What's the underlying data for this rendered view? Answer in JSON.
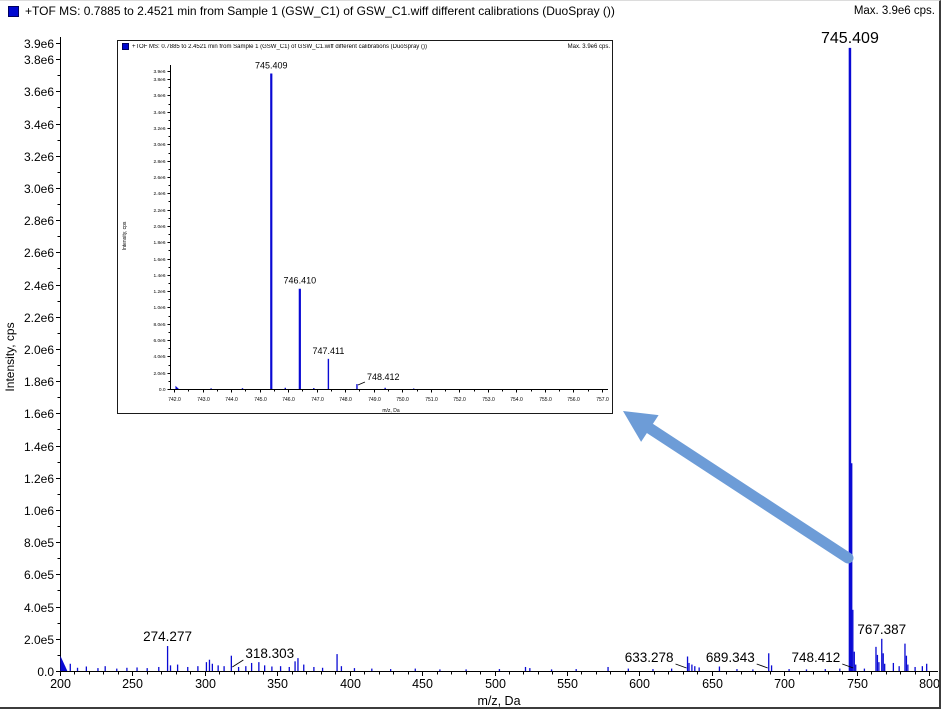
{
  "header": {
    "title": "+TOF MS: 0.7885 to 2.4521 min from Sample 1 (GSW_C1) of GSW_C1.wiff different calibrations (DuoSpray ())",
    "max_label": "Max. 3.9e6 cps."
  },
  "inset_header": {
    "title": "+TOF MS: 0.7885 to 2.4521 min from Sample 1 (GSW_C1) of GSW_C1.wiff different calibrations (DuoSpray ())",
    "max_label": "Max. 3.9e6 cps."
  },
  "colors": {
    "peak": "#0a0ad4",
    "axis": "#000000",
    "text": "#000000",
    "arrow": "#6d9cd7",
    "legend_icon": "#0008d0"
  },
  "chart_data": [
    {
      "id": "main",
      "type": "bar",
      "title": "+TOF MS: 0.7885 to 2.4521 min from Sample 1 (GSW_C1) of GSW_C1.wiff different calibrations (DuoSpray ())",
      "max_label": "Max. 3.9e6 cps.",
      "xlabel": "m/z, Da",
      "ylabel": "Intensity, cps",
      "xlim": [
        200,
        800
      ],
      "ylim": [
        0,
        3900000
      ],
      "x_minor_step": 10,
      "y_minor_step": 100000,
      "x_ticks": [
        {
          "v": 200,
          "t": "200"
        },
        {
          "v": 250,
          "t": "250"
        },
        {
          "v": 300,
          "t": "300"
        },
        {
          "v": 350,
          "t": "350"
        },
        {
          "v": 400,
          "t": "400"
        },
        {
          "v": 450,
          "t": "450"
        },
        {
          "v": 500,
          "t": "500"
        },
        {
          "v": 550,
          "t": "550"
        },
        {
          "v": 600,
          "t": "600"
        },
        {
          "v": 650,
          "t": "650"
        },
        {
          "v": 700,
          "t": "700"
        },
        {
          "v": 750,
          "t": "750"
        },
        {
          "v": 800,
          "t": "800"
        }
      ],
      "y_ticks": [
        {
          "v": 0,
          "t": "0.0"
        },
        {
          "v": 200000,
          "t": "2.0e5"
        },
        {
          "v": 400000,
          "t": "4.0e5"
        },
        {
          "v": 600000,
          "t": "6.0e5"
        },
        {
          "v": 800000,
          "t": "8.0e5"
        },
        {
          "v": 1000000,
          "t": "1.0e6"
        },
        {
          "v": 1200000,
          "t": "1.2e6"
        },
        {
          "v": 1400000,
          "t": "1.4e6"
        },
        {
          "v": 1600000,
          "t": "1.6e6"
        },
        {
          "v": 1800000,
          "t": "1.8e6"
        },
        {
          "v": 2000000,
          "t": "2.0e6"
        },
        {
          "v": 2200000,
          "t": "2.2e6"
        },
        {
          "v": 2400000,
          "t": "2.4e6"
        },
        {
          "v": 2600000,
          "t": "2.6e6"
        },
        {
          "v": 2800000,
          "t": "2.8e6"
        },
        {
          "v": 3000000,
          "t": "3.0e6"
        },
        {
          "v": 3200000,
          "t": "3.2e6"
        },
        {
          "v": 3400000,
          "t": "3.4e6"
        },
        {
          "v": 3600000,
          "t": "3.6e6"
        },
        {
          "v": 3800000,
          "t": "3.8e6"
        },
        {
          "v": 3900000,
          "t": "3.9e6"
        }
      ],
      "peaks": [
        {
          "mz": 200.25,
          "intensity": 95000,
          "edge": true
        },
        {
          "mz": 203.1,
          "intensity": 30000
        },
        {
          "mz": 207.1,
          "intensity": 45000
        },
        {
          "mz": 212.1,
          "intensity": 20000
        },
        {
          "mz": 218.2,
          "intensity": 28000
        },
        {
          "mz": 226.2,
          "intensity": 18000
        },
        {
          "mz": 231.2,
          "intensity": 30000
        },
        {
          "mz": 239.2,
          "intensity": 15000
        },
        {
          "mz": 246.2,
          "intensity": 20000
        },
        {
          "mz": 253.2,
          "intensity": 22000
        },
        {
          "mz": 260.2,
          "intensity": 18000
        },
        {
          "mz": 268.2,
          "intensity": 25000
        },
        {
          "mz": 274.277,
          "intensity": 155000,
          "label": "274.277",
          "label_side": "above"
        },
        {
          "mz": 276.3,
          "intensity": 35000
        },
        {
          "mz": 281.2,
          "intensity": 40000
        },
        {
          "mz": 288.2,
          "intensity": 25000
        },
        {
          "mz": 295.2,
          "intensity": 30000
        },
        {
          "mz": 301.1,
          "intensity": 55000
        },
        {
          "mz": 303.2,
          "intensity": 70000
        },
        {
          "mz": 305.2,
          "intensity": 45000
        },
        {
          "mz": 309.2,
          "intensity": 35000
        },
        {
          "mz": 313.3,
          "intensity": 30000
        },
        {
          "mz": 318.303,
          "intensity": 95000,
          "label": "318.303",
          "label_side": "right",
          "leader": true
        },
        {
          "mz": 323.3,
          "intensity": 25000
        },
        {
          "mz": 328.3,
          "intensity": 30000
        },
        {
          "mz": 332.3,
          "intensity": 50000
        },
        {
          "mz": 337.3,
          "intensity": 55000
        },
        {
          "mz": 341.3,
          "intensity": 35000
        },
        {
          "mz": 346.3,
          "intensity": 28000
        },
        {
          "mz": 352.3,
          "intensity": 30000
        },
        {
          "mz": 358.3,
          "intensity": 25000
        },
        {
          "mz": 362.3,
          "intensity": 60000
        },
        {
          "mz": 364.3,
          "intensity": 80000
        },
        {
          "mz": 368.3,
          "intensity": 40000
        },
        {
          "mz": 375.3,
          "intensity": 25000
        },
        {
          "mz": 381.3,
          "intensity": 20000
        },
        {
          "mz": 391.3,
          "intensity": 105000
        },
        {
          "mz": 394.3,
          "intensity": 30000
        },
        {
          "mz": 403.3,
          "intensity": 18000
        },
        {
          "mz": 415.3,
          "intensity": 15000
        },
        {
          "mz": 428.3,
          "intensity": 12000
        },
        {
          "mz": 445.3,
          "intensity": 15000
        },
        {
          "mz": 462.3,
          "intensity": 10000
        },
        {
          "mz": 480.4,
          "intensity": 10000
        },
        {
          "mz": 503.4,
          "intensity": 12000
        },
        {
          "mz": 521.4,
          "intensity": 25000
        },
        {
          "mz": 524.4,
          "intensity": 18000
        },
        {
          "mz": 539.4,
          "intensity": 10000
        },
        {
          "mz": 556.4,
          "intensity": 12000
        },
        {
          "mz": 578.4,
          "intensity": 25000
        },
        {
          "mz": 592.4,
          "intensity": 15000
        },
        {
          "mz": 609.4,
          "intensity": 12000
        },
        {
          "mz": 622.3,
          "intensity": 15000
        },
        {
          "mz": 633.278,
          "intensity": 90000,
          "label": "633.278",
          "label_side": "left",
          "leader": true
        },
        {
          "mz": 634.3,
          "intensity": 50000
        },
        {
          "mz": 636.3,
          "intensity": 40000
        },
        {
          "mz": 638.3,
          "intensity": 30000
        },
        {
          "mz": 641.3,
          "intensity": 22000
        },
        {
          "mz": 655.3,
          "intensity": 28000
        },
        {
          "mz": 667.4,
          "intensity": 12000
        },
        {
          "mz": 678.4,
          "intensity": 10000
        },
        {
          "mz": 689.343,
          "intensity": 110000,
          "label": "689.343",
          "label_side": "left",
          "leader": true
        },
        {
          "mz": 691.3,
          "intensity": 35000
        },
        {
          "mz": 703.4,
          "intensity": 12000
        },
        {
          "mz": 715.4,
          "intensity": 10000
        },
        {
          "mz": 728.4,
          "intensity": 12000
        },
        {
          "mz": 738.4,
          "intensity": 15000
        },
        {
          "mz": 745.409,
          "intensity": 3870000,
          "label": "745.409",
          "label_side": "above",
          "big": true
        },
        {
          "mz": 746.41,
          "intensity": 1290000
        },
        {
          "mz": 747.411,
          "intensity": 380000
        },
        {
          "mz": 748.412,
          "intensity": 120000,
          "label": "748.412",
          "label_side": "left",
          "leader": true
        },
        {
          "mz": 749.4,
          "intensity": 40000
        },
        {
          "mz": 755.4,
          "intensity": 15000
        },
        {
          "mz": 763.39,
          "intensity": 150000
        },
        {
          "mz": 764.39,
          "intensity": 100000
        },
        {
          "mz": 765.4,
          "intensity": 55000
        },
        {
          "mz": 767.387,
          "intensity": 200000,
          "label": "767.387",
          "label_side": "above"
        },
        {
          "mz": 768.39,
          "intensity": 110000
        },
        {
          "mz": 769.4,
          "intensity": 45000
        },
        {
          "mz": 775.4,
          "intensity": 50000
        },
        {
          "mz": 779.4,
          "intensity": 30000
        },
        {
          "mz": 783.41,
          "intensity": 170000
        },
        {
          "mz": 784.41,
          "intensity": 95000
        },
        {
          "mz": 785.4,
          "intensity": 40000
        },
        {
          "mz": 790.4,
          "intensity": 25000
        },
        {
          "mz": 795.4,
          "intensity": 30000
        },
        {
          "mz": 798.4,
          "intensity": 45000
        }
      ]
    },
    {
      "id": "inset",
      "type": "bar",
      "title": "+TOF MS: 0.7885 to 2.4521 min from Sample 1 (GSW_C1) of GSW_C1.wiff different calibrations (DuoSpray ())",
      "max_label": "Max. 3.9e6 cps.",
      "xlabel": "m/z, Da",
      "ylabel": "Intensity, cps",
      "xlim": [
        742,
        757
      ],
      "ylim": [
        0,
        3900000
      ],
      "x_minor_step": 0.5,
      "y_minor_step": 100000,
      "x_ticks": [
        {
          "v": 742,
          "t": "742.0"
        },
        {
          "v": 743,
          "t": "743.0"
        },
        {
          "v": 744,
          "t": "744.0"
        },
        {
          "v": 745,
          "t": "745.0"
        },
        {
          "v": 746,
          "t": "746.0"
        },
        {
          "v": 747,
          "t": "747.0"
        },
        {
          "v": 748,
          "t": "748.0"
        },
        {
          "v": 749,
          "t": "749.0"
        },
        {
          "v": 750,
          "t": "750.0"
        },
        {
          "v": 751,
          "t": "751.0"
        },
        {
          "v": 752,
          "t": "752.0"
        },
        {
          "v": 753,
          "t": "753.0"
        },
        {
          "v": 754,
          "t": "754.0"
        },
        {
          "v": 755,
          "t": "755.0"
        },
        {
          "v": 756,
          "t": "756.0"
        },
        {
          "v": 757,
          "t": "757.0"
        }
      ],
      "y_ticks": [
        {
          "v": 0,
          "t": "0.0"
        },
        {
          "v": 200000,
          "t": "2.0e5"
        },
        {
          "v": 400000,
          "t": "4.0e5"
        },
        {
          "v": 600000,
          "t": "6.0e5"
        },
        {
          "v": 800000,
          "t": "8.0e5"
        },
        {
          "v": 1000000,
          "t": "1.0e6"
        },
        {
          "v": 1200000,
          "t": "1.2e6"
        },
        {
          "v": 1400000,
          "t": "1.4e6"
        },
        {
          "v": 1600000,
          "t": "1.6e6"
        },
        {
          "v": 1800000,
          "t": "1.8e6"
        },
        {
          "v": 2000000,
          "t": "2.0e6"
        },
        {
          "v": 2200000,
          "t": "2.2e6"
        },
        {
          "v": 2400000,
          "t": "2.4e6"
        },
        {
          "v": 2600000,
          "t": "2.6e6"
        },
        {
          "v": 2800000,
          "t": "2.8e6"
        },
        {
          "v": 3000000,
          "t": "3.0e6"
        },
        {
          "v": 3200000,
          "t": "3.2e6"
        },
        {
          "v": 3400000,
          "t": "3.4e6"
        },
        {
          "v": 3600000,
          "t": "3.6e6"
        },
        {
          "v": 3800000,
          "t": "3.8e6"
        },
        {
          "v": 3900000,
          "t": "3.9e6"
        }
      ],
      "peaks": [
        {
          "mz": 742.05,
          "intensity": 40000,
          "edge": true
        },
        {
          "mz": 743.3,
          "intensity": 8000
        },
        {
          "mz": 744.4,
          "intensity": 10000
        },
        {
          "mz": 745.409,
          "intensity": 3870000,
          "label": "745.409",
          "label_side": "above"
        },
        {
          "mz": 745.9,
          "intensity": 15000
        },
        {
          "mz": 746.41,
          "intensity": 1230000,
          "label": "746.410",
          "label_side": "above"
        },
        {
          "mz": 746.9,
          "intensity": 12000
        },
        {
          "mz": 747.411,
          "intensity": 370000,
          "label": "747.411",
          "label_side": "above"
        },
        {
          "mz": 748.412,
          "intensity": 60000,
          "label": "748.412",
          "label_side": "right",
          "leader": true
        },
        {
          "mz": 749.4,
          "intensity": 15000
        },
        {
          "mz": 750.4,
          "intensity": 6000
        }
      ]
    }
  ]
}
